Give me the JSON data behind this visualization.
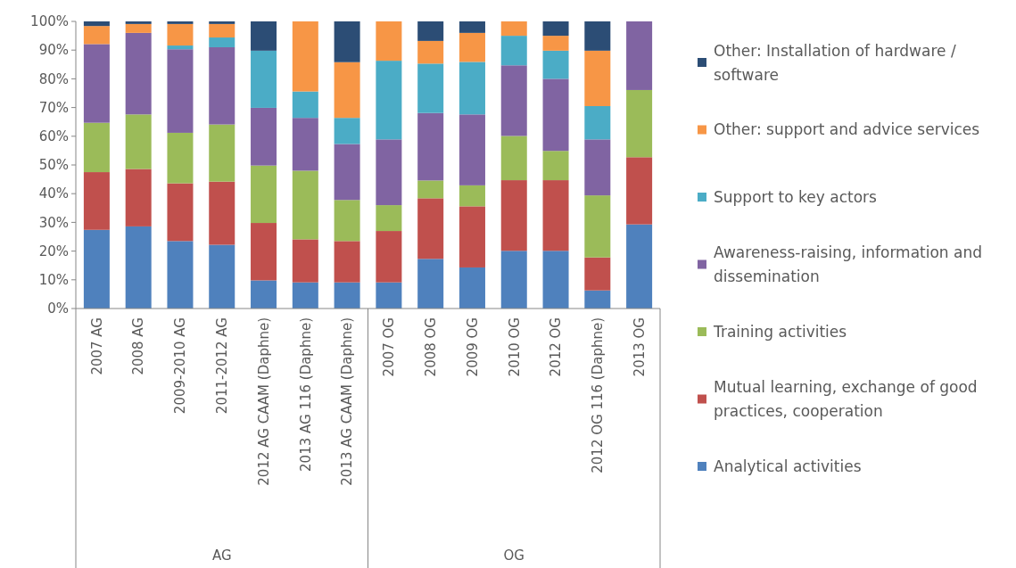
{
  "chart_data": {
    "type": "bar",
    "stacked": true,
    "legend": "right",
    "grid": false,
    "categories": [
      "2007 AG",
      "2008 AG",
      "2009-2010 AG",
      "2011-2012 AG",
      "2012 AG CAAM (Daphne)",
      "2013 AG 116 (Daphne)",
      "2013 AG CAAM (Daphne)",
      "2007 OG",
      "2008 OG",
      "2009 OG",
      "2010 OG",
      "2012 OG",
      "2012 OG 116 (Daphne)",
      "2013 OG"
    ],
    "ylim": [
      0,
      100
    ],
    "yticks": [
      {
        "value": 0,
        "label": "0%"
      },
      {
        "value": 10,
        "label": "10%"
      },
      {
        "value": 20,
        "label": "20%"
      },
      {
        "value": 30,
        "label": "30%"
      },
      {
        "value": 40,
        "label": "40%"
      },
      {
        "value": 50,
        "label": "50%"
      },
      {
        "value": 60,
        "label": "60%"
      },
      {
        "value": 70,
        "label": "70%"
      },
      {
        "value": 80,
        "label": "80%"
      },
      {
        "value": 90,
        "label": "90%"
      },
      {
        "value": 100,
        "label": "100%"
      }
    ],
    "series": [
      {
        "name": "Analytical activities",
        "color": "#4f81bd",
        "values": [
          27.4,
          28.6,
          23.5,
          22.2,
          9.8,
          9.1,
          9.1,
          9.1,
          17.3,
          14.3,
          20.1,
          20.1,
          6.3,
          29.3
        ]
      },
      {
        "name": "Mutual learning, exchange of good practices, cooperation",
        "color": "#c0504d",
        "values": [
          20.1,
          20.0,
          20.1,
          22.0,
          20.0,
          15.0,
          14.4,
          17.9,
          21.1,
          21.3,
          24.6,
          24.6,
          11.5,
          23.4
        ]
      },
      {
        "name": "Training activities",
        "color": "#9bbb59",
        "values": [
          17.2,
          19.0,
          17.6,
          19.9,
          20.0,
          23.9,
          14.3,
          9.0,
          6.2,
          7.3,
          15.4,
          10.2,
          21.6,
          23.4
        ]
      },
      {
        "name": "Awareness-raising, information and dissemination",
        "color": "#8064a2",
        "values": [
          27.4,
          28.4,
          29.1,
          26.9,
          20.1,
          18.4,
          19.5,
          22.9,
          23.5,
          24.7,
          24.6,
          25.1,
          19.5,
          23.9
        ]
      },
      {
        "name": "Support to key actors",
        "color": "#4bacc6",
        "values": [
          0,
          0,
          1.3,
          3.4,
          19.9,
          9.2,
          9.1,
          27.4,
          17.2,
          18.3,
          10.3,
          9.8,
          11.6,
          0
        ]
      },
      {
        "name": "Other: support and advice services",
        "color": "#f79646",
        "values": [
          6.3,
          3.1,
          7.5,
          4.7,
          0,
          24.4,
          19.4,
          13.7,
          7.9,
          10.1,
          5.0,
          5.2,
          19.3,
          0
        ]
      },
      {
        "name": "Other: Installation of hardware / software",
        "color": "#2c4d75",
        "values": [
          1.6,
          0.9,
          0.9,
          0.9,
          10.2,
          0,
          14.2,
          0,
          6.8,
          4.0,
          0,
          5.0,
          10.2,
          0
        ]
      }
    ],
    "annotations": [
      "AG",
      "OG"
    ]
  }
}
